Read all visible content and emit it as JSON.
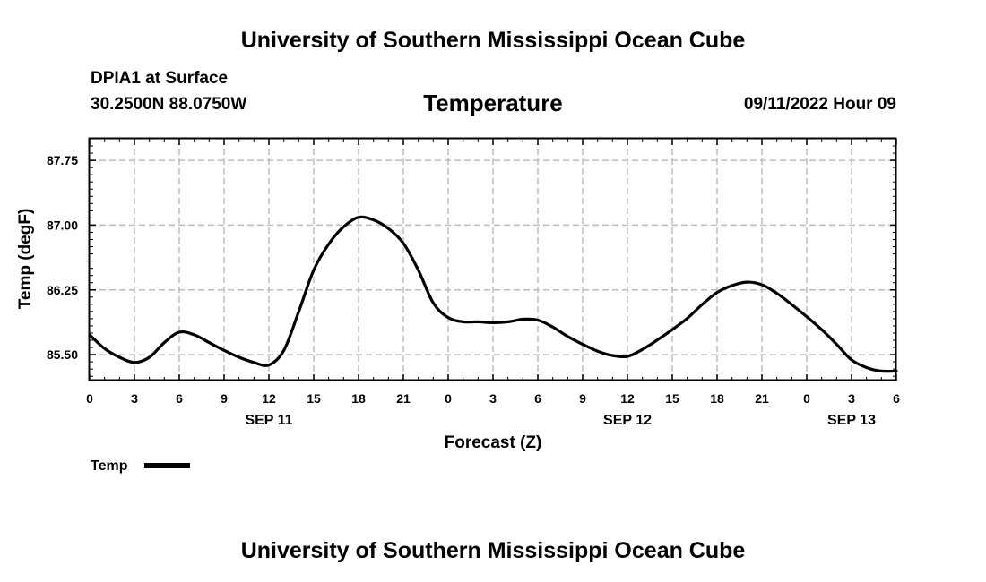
{
  "header": {
    "title": "University of Southern Mississippi Ocean Cube",
    "station": "DPIA1 at Surface",
    "coords": "30.2500N  88.0750W",
    "variable": "Temperature",
    "datetime": "09/11/2022 Hour 09"
  },
  "footer": {
    "title": "University of Southern Mississippi Ocean Cube"
  },
  "chart_data": {
    "type": "line",
    "title": "Temperature",
    "xlabel": "Forecast (Z)",
    "ylabel": "Temp (degF)",
    "ylim": [
      85.2,
      88.0
    ],
    "xlim": [
      0,
      54
    ],
    "grid": true,
    "legend": "bottom-left",
    "x_ticks": [
      0,
      3,
      6,
      9,
      12,
      15,
      18,
      21,
      24,
      27,
      30,
      33,
      36,
      39,
      42,
      45,
      48,
      51,
      54
    ],
    "x_tick_labels": [
      "0",
      "3",
      "6",
      "9",
      "12",
      "15",
      "18",
      "21",
      "0",
      "3",
      "6",
      "9",
      "12",
      "15",
      "18",
      "21",
      "0",
      "3",
      "6"
    ],
    "date_labels": [
      {
        "x": 12,
        "label": "SEP 11"
      },
      {
        "x": 36,
        "label": "SEP 12"
      },
      {
        "x": 51,
        "label": "SEP 13"
      }
    ],
    "y_ticks": [
      85.5,
      86.25,
      87.0,
      87.75
    ],
    "y_tick_labels": [
      "85.50",
      "86.25",
      "87.00",
      "87.75"
    ],
    "series": [
      {
        "name": "Temp",
        "color": "#000000",
        "x": [
          0,
          1,
          2,
          3,
          4,
          5,
          6,
          7,
          8,
          9,
          10,
          11,
          12,
          13,
          14,
          15,
          16,
          17,
          18,
          19,
          20,
          21,
          22,
          23,
          24,
          25,
          26,
          27,
          28,
          29,
          30,
          31,
          32,
          33,
          34,
          35,
          36,
          37,
          38,
          39,
          40,
          41,
          42,
          43,
          44,
          45,
          46,
          47,
          48,
          49,
          50,
          51,
          52,
          53,
          54
        ],
        "values": [
          85.73,
          85.57,
          85.47,
          85.41,
          85.47,
          85.64,
          85.76,
          85.73,
          85.64,
          85.55,
          85.47,
          85.41,
          85.38,
          85.55,
          86.0,
          86.48,
          86.78,
          86.98,
          87.09,
          87.06,
          86.96,
          86.79,
          86.48,
          86.1,
          85.93,
          85.88,
          85.88,
          85.87,
          85.88,
          85.91,
          85.9,
          85.82,
          85.71,
          85.62,
          85.54,
          85.49,
          85.48,
          85.56,
          85.67,
          85.79,
          85.92,
          86.08,
          86.22,
          86.3,
          86.34,
          86.31,
          86.21,
          86.08,
          85.94,
          85.79,
          85.62,
          85.44,
          85.35,
          85.31,
          85.31
        ]
      }
    ]
  }
}
